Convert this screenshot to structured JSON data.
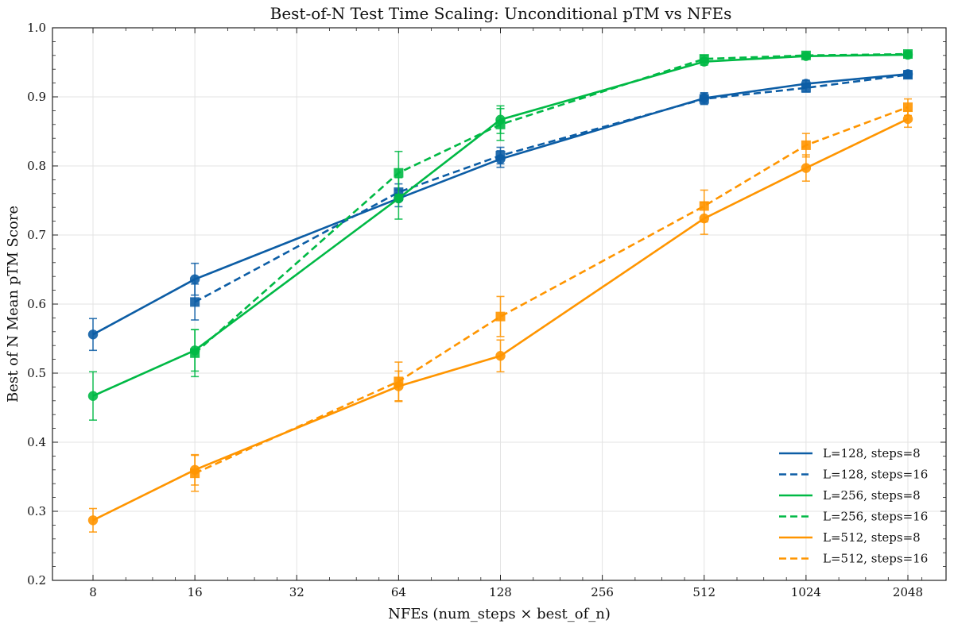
{
  "chart_data": {
    "type": "line",
    "title": "Best-of-N Test Time Scaling: Unconditional pTM vs NFEs",
    "xlabel": "NFEs (num_steps × best_of_n)",
    "ylabel": "Best of N Mean pTM Score",
    "x_scale": "log2",
    "x_ticks": [
      8,
      16,
      32,
      64,
      128,
      256,
      512,
      1024,
      2048
    ],
    "x_tick_labels": [
      "8",
      "16",
      "32",
      "64",
      "128",
      "256",
      "512",
      "1024",
      "2048"
    ],
    "ylim": [
      0.2,
      1.0
    ],
    "y_ticks": [
      0.2,
      0.3,
      0.4,
      0.5,
      0.6,
      0.7,
      0.8,
      0.9,
      1.0
    ],
    "y_tick_labels": [
      "0.2",
      "0.3",
      "0.4",
      "0.5",
      "0.6",
      "0.7",
      "0.8",
      "0.9",
      "1.0"
    ],
    "grid": true,
    "legend_position": "bottom-right",
    "series": [
      {
        "name": "L=128, steps=8",
        "color": "#0c5da5",
        "linestyle": "solid",
        "marker": "circle",
        "x": [
          8,
          16,
          64,
          128,
          512,
          1024,
          2048
        ],
        "y": [
          0.556,
          0.636,
          0.753,
          0.81,
          0.898,
          0.919,
          0.933
        ],
        "err": [
          0.023,
          0.023,
          0.012,
          0.012,
          0.008,
          0.005,
          0.005
        ]
      },
      {
        "name": "L=128, steps=16",
        "color": "#0c5da5",
        "linestyle": "dashed",
        "marker": "square",
        "x": [
          16,
          64,
          128,
          512,
          1024,
          2048
        ],
        "y": [
          0.603,
          0.762,
          0.815,
          0.897,
          0.913,
          0.932
        ],
        "err": [
          0.026,
          0.012,
          0.012,
          0.008,
          0.006,
          0.005
        ]
      },
      {
        "name": "L=256, steps=8",
        "color": "#00b945",
        "linestyle": "solid",
        "marker": "circle",
        "x": [
          8,
          16,
          64,
          128,
          512,
          1024,
          2048
        ],
        "y": [
          0.467,
          0.533,
          0.753,
          0.867,
          0.951,
          0.959,
          0.961
        ],
        "err": [
          0.035,
          0.03,
          0.03,
          0.02,
          0.005,
          0.003,
          0.003
        ]
      },
      {
        "name": "L=256, steps=16",
        "color": "#00b945",
        "linestyle": "dashed",
        "marker": "square",
        "x": [
          16,
          64,
          128,
          512,
          1024,
          2048
        ],
        "y": [
          0.529,
          0.79,
          0.86,
          0.955,
          0.96,
          0.962
        ],
        "err": [
          0.034,
          0.031,
          0.023,
          0.005,
          0.003,
          0.003
        ]
      },
      {
        "name": "L=512, steps=8",
        "color": "#ff9500",
        "linestyle": "solid",
        "marker": "circle",
        "x": [
          8,
          16,
          64,
          128,
          512,
          1024,
          2048
        ],
        "y": [
          0.287,
          0.36,
          0.481,
          0.525,
          0.724,
          0.797,
          0.868
        ],
        "err": [
          0.017,
          0.022,
          0.022,
          0.023,
          0.023,
          0.019,
          0.012
        ]
      },
      {
        "name": "L=512, steps=16",
        "color": "#ff9500",
        "linestyle": "dashed",
        "marker": "square",
        "x": [
          16,
          64,
          128,
          512,
          1024,
          2048
        ],
        "y": [
          0.355,
          0.488,
          0.582,
          0.742,
          0.83,
          0.885
        ],
        "err": [
          0.026,
          0.028,
          0.029,
          0.023,
          0.017,
          0.012
        ]
      }
    ]
  }
}
